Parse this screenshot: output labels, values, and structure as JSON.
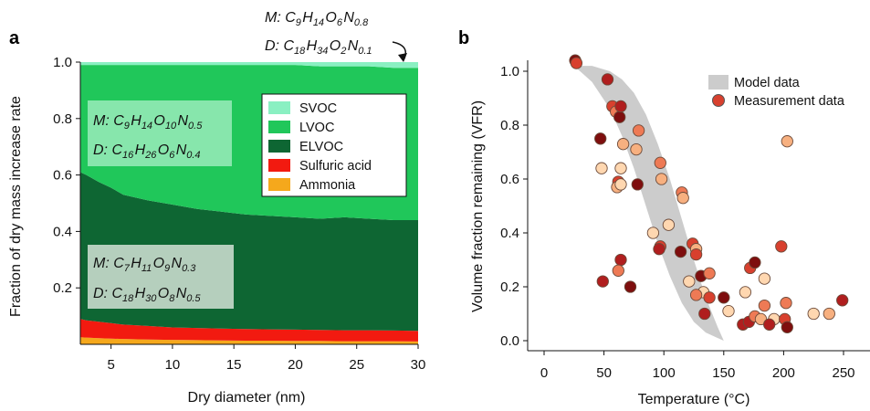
{
  "chart_data": [
    {
      "type": "area",
      "panel_label": "a",
      "title": "",
      "xlabel": "Dry diameter (nm)",
      "ylabel": "Fraction of dry mass increase rate",
      "xlim": [
        2.5,
        30
      ],
      "ylim": [
        0,
        1.0
      ],
      "xticks": [
        5,
        10,
        15,
        20,
        25,
        30
      ],
      "yticks": [
        0.2,
        0.4,
        0.6,
        0.8,
        1.0
      ],
      "stacking": "cumulative boundaries (top of each layer)",
      "legend_position": "top-right",
      "legend": [
        "SVOC",
        "LVOC",
        "ELVOC",
        "Sulfuric acid",
        "Ammonia"
      ],
      "colors": {
        "SVOC": "#8af0c2",
        "LVOC": "#20c75a",
        "ELVOC": "#0e6633",
        "Sulfuric acid": "#f21a10",
        "Ammonia": "#f5a81c"
      },
      "x": [
        2.5,
        3,
        4,
        5,
        6,
        8,
        10,
        12,
        14,
        16,
        18,
        20,
        22,
        24,
        26,
        28,
        30
      ],
      "series": [
        {
          "name": "Ammonia",
          "upper": [
            0.025,
            0.024,
            0.022,
            0.02,
            0.019,
            0.017,
            0.016,
            0.015,
            0.014,
            0.013,
            0.013,
            0.012,
            0.012,
            0.011,
            0.011,
            0.011,
            0.01
          ]
        },
        {
          "name": "Sulfuric acid",
          "upper": [
            0.09,
            0.085,
            0.08,
            0.075,
            0.07,
            0.065,
            0.06,
            0.058,
            0.056,
            0.054,
            0.053,
            0.052,
            0.051,
            0.05,
            0.05,
            0.049,
            0.048
          ]
        },
        {
          "name": "ELVOC",
          "upper": [
            0.61,
            0.6,
            0.575,
            0.555,
            0.53,
            0.51,
            0.495,
            0.48,
            0.47,
            0.46,
            0.455,
            0.45,
            0.445,
            0.45,
            0.445,
            0.44,
            0.44
          ]
        },
        {
          "name": "LVOC",
          "upper": [
            0.99,
            0.99,
            0.99,
            0.99,
            0.99,
            0.99,
            0.99,
            0.99,
            0.99,
            0.99,
            0.99,
            0.99,
            0.985,
            0.985,
            0.985,
            0.98,
            0.98
          ]
        },
        {
          "name": "SVOC",
          "upper": [
            1.0,
            1.0,
            1.0,
            1.0,
            1.0,
            1.0,
            1.0,
            1.0,
            1.0,
            1.0,
            1.0,
            1.0,
            1.0,
            1.0,
            1.0,
            1.0,
            1.0
          ]
        }
      ],
      "annotations": {
        "top": {
          "line1": {
            "prefix": "M: ",
            "parts": [
              [
                "C",
                "9"
              ],
              [
                "H",
                "14"
              ],
              [
                "O",
                "6"
              ],
              [
                "N",
                "0.8"
              ]
            ]
          },
          "line2": {
            "prefix": "D: ",
            "parts": [
              [
                "C",
                "18"
              ],
              [
                "H",
                "34"
              ],
              [
                "O",
                "2"
              ],
              [
                "N",
                "0.1"
              ]
            ]
          }
        },
        "lvoc": {
          "line1": {
            "prefix": "M: ",
            "parts": [
              [
                "C",
                "9"
              ],
              [
                "H",
                "14"
              ],
              [
                "O",
                "10"
              ],
              [
                "N",
                "0.5"
              ]
            ]
          },
          "line2": {
            "prefix": "D: ",
            "parts": [
              [
                "C",
                "16"
              ],
              [
                "H",
                "26"
              ],
              [
                "O",
                "6"
              ],
              [
                "N",
                "0.4"
              ]
            ]
          }
        },
        "elvoc": {
          "line1": {
            "prefix": "M: ",
            "parts": [
              [
                "C",
                "7"
              ],
              [
                "H",
                "11"
              ],
              [
                "O",
                "9"
              ],
              [
                "N",
                "0.3"
              ]
            ]
          },
          "line2": {
            "prefix": "D: ",
            "parts": [
              [
                "C",
                "18"
              ],
              [
                "H",
                "30"
              ],
              [
                "O",
                "8"
              ],
              [
                "N",
                "0.5"
              ]
            ]
          }
        }
      }
    },
    {
      "type": "scatter",
      "panel_label": "b",
      "title": "",
      "xlabel": "Temperature (°C)",
      "ylabel": "Volume fraction remaining (VFR)",
      "xlim": [
        0,
        270
      ],
      "ylim": [
        -0.02,
        1.05
      ],
      "xticks": [
        0,
        50,
        100,
        150,
        200,
        250
      ],
      "yticks": [
        0.0,
        0.2,
        0.4,
        0.6,
        0.8,
        1.0
      ],
      "legend_position": "top-right",
      "legend": [
        "Model data",
        "Measurement data"
      ],
      "model_band": {
        "color": "#cccccc",
        "x": [
          25,
          40,
          55,
          65,
          75,
          85,
          95,
          105,
          115,
          125,
          135,
          145,
          150
        ],
        "upper": [
          1.02,
          1.02,
          1.0,
          0.97,
          0.92,
          0.84,
          0.73,
          0.6,
          0.45,
          0.3,
          0.16,
          0.05,
          0.0
        ],
        "lower": [
          1.02,
          0.96,
          0.86,
          0.76,
          0.64,
          0.5,
          0.36,
          0.24,
          0.14,
          0.07,
          0.03,
          0.01,
          0.0
        ]
      },
      "measurements": {
        "colors": [
          "#ffd7b0",
          "#f7b080",
          "#ee7a55",
          "#d8402e",
          "#b01e1e",
          "#7e0e0e"
        ],
        "points": [
          {
            "x": 26,
            "y": 1.04,
            "c": 5
          },
          {
            "x": 27,
            "y": 1.03,
            "c": 3
          },
          {
            "x": 53,
            "y": 0.97,
            "c": 4
          },
          {
            "x": 57,
            "y": 0.87,
            "c": 3
          },
          {
            "x": 60,
            "y": 0.85,
            "c": 2
          },
          {
            "x": 63,
            "y": 0.83,
            "c": 5
          },
          {
            "x": 64,
            "y": 0.87,
            "c": 4
          },
          {
            "x": 47,
            "y": 0.75,
            "c": 5
          },
          {
            "x": 79,
            "y": 0.78,
            "c": 2
          },
          {
            "x": 77,
            "y": 0.71,
            "c": 1
          },
          {
            "x": 66,
            "y": 0.73,
            "c": 1
          },
          {
            "x": 48,
            "y": 0.64,
            "c": 0
          },
          {
            "x": 64,
            "y": 0.64,
            "c": 0
          },
          {
            "x": 62,
            "y": 0.59,
            "c": 3
          },
          {
            "x": 61,
            "y": 0.57,
            "c": 1
          },
          {
            "x": 64,
            "y": 0.58,
            "c": 0
          },
          {
            "x": 78,
            "y": 0.58,
            "c": 5
          },
          {
            "x": 97,
            "y": 0.66,
            "c": 2
          },
          {
            "x": 98,
            "y": 0.6,
            "c": 1
          },
          {
            "x": 115,
            "y": 0.55,
            "c": 2
          },
          {
            "x": 116,
            "y": 0.53,
            "c": 1
          },
          {
            "x": 104,
            "y": 0.43,
            "c": 0
          },
          {
            "x": 91,
            "y": 0.4,
            "c": 0
          },
          {
            "x": 97,
            "y": 0.35,
            "c": 3
          },
          {
            "x": 96,
            "y": 0.34,
            "c": 4
          },
          {
            "x": 114,
            "y": 0.33,
            "c": 5
          },
          {
            "x": 124,
            "y": 0.36,
            "c": 3
          },
          {
            "x": 127,
            "y": 0.34,
            "c": 1
          },
          {
            "x": 127,
            "y": 0.32,
            "c": 3
          },
          {
            "x": 64,
            "y": 0.3,
            "c": 4
          },
          {
            "x": 62,
            "y": 0.26,
            "c": 2
          },
          {
            "x": 49,
            "y": 0.22,
            "c": 4
          },
          {
            "x": 72,
            "y": 0.2,
            "c": 5
          },
          {
            "x": 131,
            "y": 0.24,
            "c": 5
          },
          {
            "x": 138,
            "y": 0.25,
            "c": 2
          },
          {
            "x": 121,
            "y": 0.22,
            "c": 0
          },
          {
            "x": 133,
            "y": 0.18,
            "c": 0
          },
          {
            "x": 127,
            "y": 0.17,
            "c": 2
          },
          {
            "x": 138,
            "y": 0.16,
            "c": 3
          },
          {
            "x": 134,
            "y": 0.1,
            "c": 4
          },
          {
            "x": 150,
            "y": 0.16,
            "c": 5
          },
          {
            "x": 154,
            "y": 0.11,
            "c": 0
          },
          {
            "x": 168,
            "y": 0.18,
            "c": 0
          },
          {
            "x": 172,
            "y": 0.27,
            "c": 3
          },
          {
            "x": 176,
            "y": 0.29,
            "c": 5
          },
          {
            "x": 184,
            "y": 0.23,
            "c": 0
          },
          {
            "x": 198,
            "y": 0.35,
            "c": 3
          },
          {
            "x": 203,
            "y": 0.74,
            "c": 1
          },
          {
            "x": 184,
            "y": 0.13,
            "c": 2
          },
          {
            "x": 202,
            "y": 0.14,
            "c": 2
          },
          {
            "x": 166,
            "y": 0.06,
            "c": 4
          },
          {
            "x": 171,
            "y": 0.07,
            "c": 4
          },
          {
            "x": 176,
            "y": 0.09,
            "c": 2
          },
          {
            "x": 181,
            "y": 0.08,
            "c": 1
          },
          {
            "x": 192,
            "y": 0.08,
            "c": 0
          },
          {
            "x": 188,
            "y": 0.06,
            "c": 4
          },
          {
            "x": 201,
            "y": 0.08,
            "c": 3
          },
          {
            "x": 203,
            "y": 0.05,
            "c": 5
          },
          {
            "x": 225,
            "y": 0.1,
            "c": 0
          },
          {
            "x": 238,
            "y": 0.1,
            "c": 1
          },
          {
            "x": 249,
            "y": 0.15,
            "c": 4
          }
        ]
      }
    }
  ]
}
